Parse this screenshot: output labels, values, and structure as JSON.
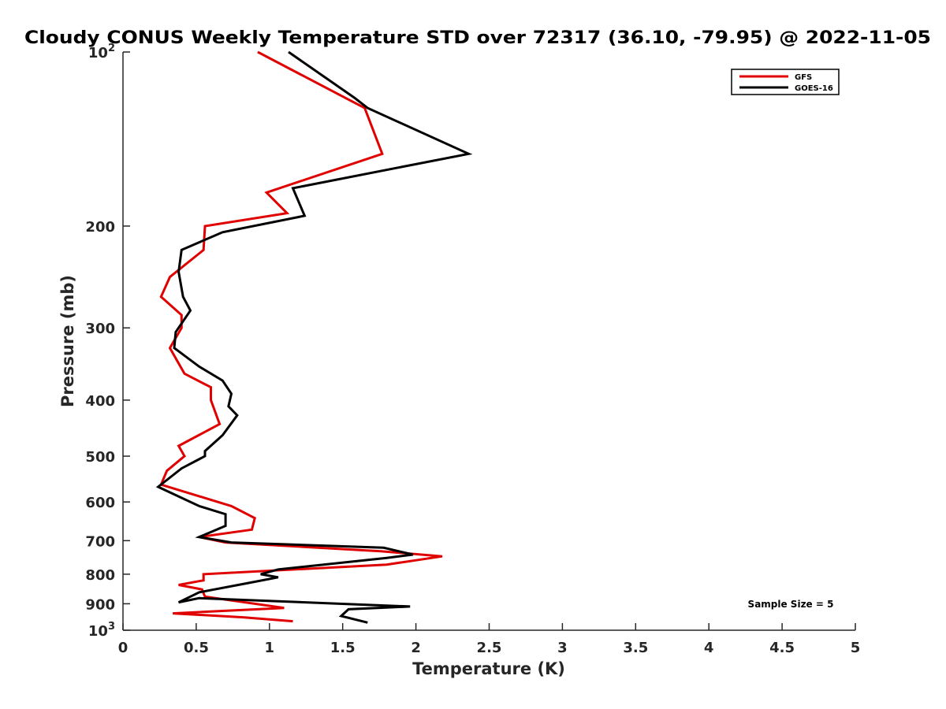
{
  "chart_data": {
    "type": "line",
    "title": "Cloudy CONUS Weekly Temperature STD over 72317 (36.10, -79.95) @ 2022-11-05",
    "xlabel": "Temperature (K)",
    "ylabel": "Pressure (mb)",
    "xlim": [
      0,
      5
    ],
    "ylim": [
      100,
      1000
    ],
    "y_scale": "log",
    "y_reversed": true,
    "x_ticks": [
      "0",
      "0.5",
      "1",
      "1.5",
      "2",
      "2.5",
      "3",
      "3.5",
      "4",
      "4.5",
      "5"
    ],
    "x_tick_values": [
      0,
      0.5,
      1,
      1.5,
      2,
      2.5,
      3,
      3.5,
      4,
      4.5,
      5
    ],
    "y_ticks": [
      {
        "value": 100,
        "base": "10",
        "exp": "2",
        "label": ""
      },
      {
        "value": 200,
        "base": "",
        "exp": "",
        "label": "200"
      },
      {
        "value": 300,
        "base": "",
        "exp": "",
        "label": "300"
      },
      {
        "value": 400,
        "base": "",
        "exp": "",
        "label": "400"
      },
      {
        "value": 500,
        "base": "",
        "exp": "",
        "label": "500"
      },
      {
        "value": 600,
        "base": "",
        "exp": "",
        "label": "600"
      },
      {
        "value": 700,
        "base": "",
        "exp": "",
        "label": "700"
      },
      {
        "value": 800,
        "base": "",
        "exp": "",
        "label": "800"
      },
      {
        "value": 900,
        "base": "",
        "exp": "",
        "label": "900"
      },
      {
        "value": 1000,
        "base": "10",
        "exp": "3",
        "label": ""
      }
    ],
    "grid": false,
    "legend_position": "top-right",
    "annotation": "Sample Size = 5",
    "series": [
      {
        "name": "GFS",
        "color": "#e00000",
        "points": [
          [
            0.92,
            100
          ],
          [
            1.65,
            125
          ],
          [
            1.77,
            150
          ],
          [
            0.98,
            175
          ],
          [
            1.12,
            190
          ],
          [
            0.56,
            200
          ],
          [
            0.55,
            220
          ],
          [
            0.32,
            245
          ],
          [
            0.26,
            265
          ],
          [
            0.4,
            285
          ],
          [
            0.4,
            300
          ],
          [
            0.32,
            325
          ],
          [
            0.42,
            360
          ],
          [
            0.6,
            380
          ],
          [
            0.6,
            400
          ],
          [
            0.66,
            440
          ],
          [
            0.38,
            480
          ],
          [
            0.42,
            500
          ],
          [
            0.3,
            530
          ],
          [
            0.26,
            560
          ],
          [
            0.74,
            610
          ],
          [
            0.9,
            640
          ],
          [
            0.88,
            670
          ],
          [
            0.52,
            690
          ],
          [
            0.7,
            705
          ],
          [
            1.76,
            730
          ],
          [
            2.18,
            745
          ],
          [
            1.8,
            770
          ],
          [
            0.55,
            800
          ],
          [
            0.55,
            820
          ],
          [
            0.38,
            835
          ],
          [
            0.54,
            850
          ],
          [
            0.56,
            875
          ],
          [
            1.1,
            915
          ],
          [
            0.34,
            935
          ],
          [
            0.82,
            950
          ],
          [
            1.16,
            965
          ]
        ]
      },
      {
        "name": "GOES-16",
        "color": "#000000",
        "points": [
          [
            1.13,
            100
          ],
          [
            1.58,
            120
          ],
          [
            1.67,
            125
          ],
          [
            2.36,
            150
          ],
          [
            1.16,
            172
          ],
          [
            1.24,
            192
          ],
          [
            0.68,
            205
          ],
          [
            0.4,
            220
          ],
          [
            0.38,
            240
          ],
          [
            0.41,
            265
          ],
          [
            0.46,
            280
          ],
          [
            0.36,
            305
          ],
          [
            0.35,
            325
          ],
          [
            0.52,
            350
          ],
          [
            0.68,
            370
          ],
          [
            0.74,
            390
          ],
          [
            0.72,
            410
          ],
          [
            0.78,
            425
          ],
          [
            0.68,
            460
          ],
          [
            0.56,
            490
          ],
          [
            0.56,
            500
          ],
          [
            0.4,
            525
          ],
          [
            0.24,
            565
          ],
          [
            0.52,
            610
          ],
          [
            0.7,
            630
          ],
          [
            0.7,
            660
          ],
          [
            0.52,
            690
          ],
          [
            0.74,
            705
          ],
          [
            1.78,
            720
          ],
          [
            1.98,
            740
          ],
          [
            1.8,
            750
          ],
          [
            1.06,
            785
          ],
          [
            0.94,
            800
          ],
          [
            1.06,
            810
          ],
          [
            0.84,
            830
          ],
          [
            0.52,
            860
          ],
          [
            0.38,
            895
          ],
          [
            0.52,
            880
          ],
          [
            1.96,
            910
          ],
          [
            1.54,
            920
          ],
          [
            1.49,
            945
          ],
          [
            1.67,
            970
          ]
        ]
      }
    ]
  }
}
